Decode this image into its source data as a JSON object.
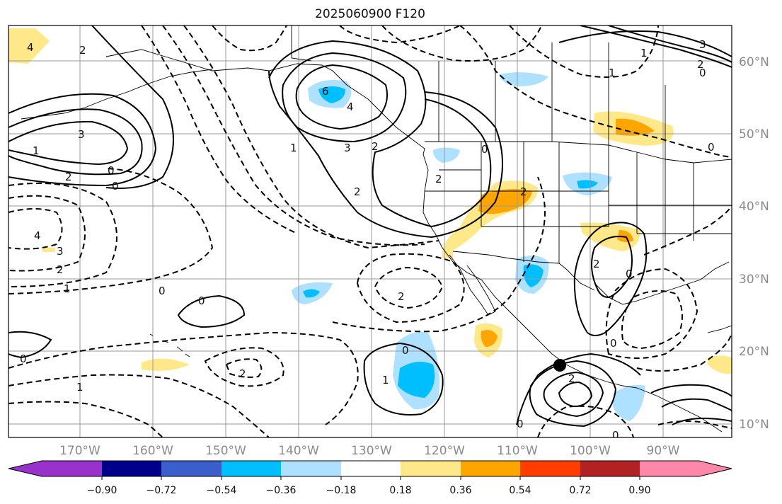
{
  "title": "2025060900 F120",
  "longitude_ticks": [
    "170°W",
    "160°W",
    "150°W",
    "140°W",
    "130°W",
    "120°W",
    "110°W",
    "100°W",
    "90°W"
  ],
  "latitude_ticks": [
    "60°N",
    "50°N",
    "40°N",
    "30°N",
    "20°N",
    "10°N"
  ],
  "colorbar": {
    "labels": [
      "−0.90",
      "−0.72",
      "−0.54",
      "−0.36",
      "−0.18",
      "0.18",
      "0.36",
      "0.54",
      "0.72",
      "0.90"
    ],
    "colors": [
      "#9932cc",
      "#00008b",
      "#3a5fcd",
      "#00bfff",
      "#aee0ff",
      "#ffffff",
      "#ffe88a",
      "#ffa500",
      "#ff3d00",
      "#b22222",
      "#ff88aa"
    ]
  },
  "contour_labels": [
    {
      "text": "4"
    },
    {
      "text": "2"
    },
    {
      "text": "3"
    },
    {
      "text": "1"
    },
    {
      "text": "2"
    },
    {
      "text": "0"
    },
    {
      "text": "0"
    },
    {
      "text": "4"
    },
    {
      "text": "3"
    },
    {
      "text": "2"
    },
    {
      "text": "1"
    },
    {
      "text": "0"
    },
    {
      "text": "6"
    },
    {
      "text": "4"
    },
    {
      "text": "3"
    },
    {
      "text": "2"
    },
    {
      "text": "1"
    },
    {
      "text": "0"
    },
    {
      "text": "2"
    },
    {
      "text": "0"
    },
    {
      "text": "2"
    },
    {
      "text": "2"
    },
    {
      "text": "2"
    },
    {
      "text": "0"
    },
    {
      "text": "1"
    },
    {
      "text": "0"
    },
    {
      "text": "1"
    },
    {
      "text": "2"
    },
    {
      "text": "2"
    },
    {
      "text": "0"
    },
    {
      "text": "0"
    },
    {
      "text": "0"
    },
    {
      "text": "2"
    },
    {
      "text": "3"
    },
    {
      "text": "2"
    },
    {
      "text": "1"
    },
    {
      "text": "0"
    },
    {
      "text": "1"
    },
    {
      "text": "0"
    },
    {
      "text": "0"
    }
  ],
  "markers": [
    {
      "name": "storm-center-dot",
      "lon": -103.7,
      "lat": 17.9
    }
  ]
}
